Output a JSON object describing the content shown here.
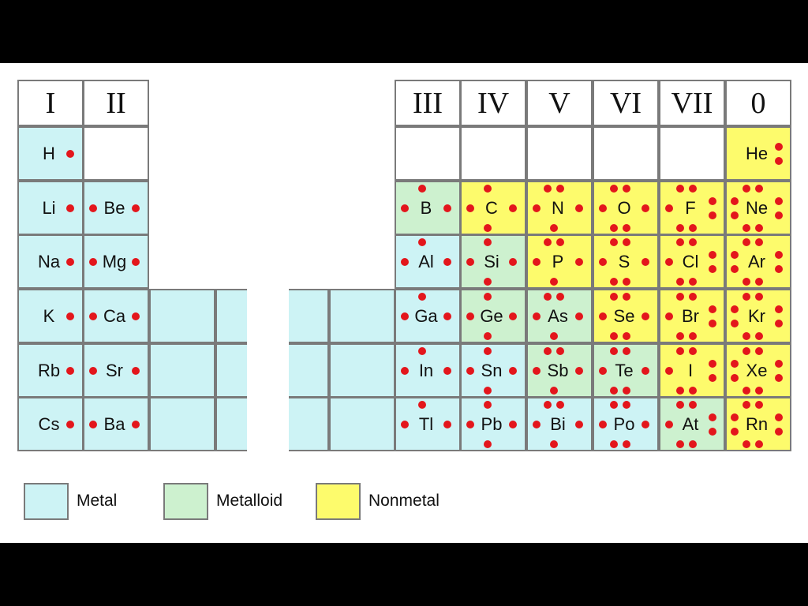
{
  "colors": {
    "metal": "#cdf3f5",
    "metalloid": "#cdf1cf",
    "nonmetal": "#fdfb6c",
    "empty": "#ffffff",
    "dot": "#e3161c"
  },
  "groups": [
    {
      "label": "I"
    },
    {
      "label": "II"
    },
    {
      "label": "III"
    },
    {
      "label": "IV"
    },
    {
      "label": "V"
    },
    {
      "label": "VI"
    },
    {
      "label": "VII"
    },
    {
      "label": "0"
    }
  ],
  "elements": [
    {
      "symbol": "H",
      "group": 0,
      "period": 0,
      "type": "metal",
      "valence": 1
    },
    {
      "symbol": "He",
      "group": 7,
      "period": 0,
      "type": "nonmetal",
      "valence": 2
    },
    {
      "symbol": "Li",
      "group": 0,
      "period": 1,
      "type": "metal",
      "valence": 1
    },
    {
      "symbol": "Be",
      "group": 1,
      "period": 1,
      "type": "metal",
      "valence": 2
    },
    {
      "symbol": "B",
      "group": 2,
      "period": 1,
      "type": "metalloid",
      "valence": 3
    },
    {
      "symbol": "C",
      "group": 3,
      "period": 1,
      "type": "nonmetal",
      "valence": 4
    },
    {
      "symbol": "N",
      "group": 4,
      "period": 1,
      "type": "nonmetal",
      "valence": 5
    },
    {
      "symbol": "O",
      "group": 5,
      "period": 1,
      "type": "nonmetal",
      "valence": 6
    },
    {
      "symbol": "F",
      "group": 6,
      "period": 1,
      "type": "nonmetal",
      "valence": 7
    },
    {
      "symbol": "Ne",
      "group": 7,
      "period": 1,
      "type": "nonmetal",
      "valence": 8
    },
    {
      "symbol": "Na",
      "group": 0,
      "period": 2,
      "type": "metal",
      "valence": 1
    },
    {
      "symbol": "Mg",
      "group": 1,
      "period": 2,
      "type": "metal",
      "valence": 2
    },
    {
      "symbol": "Al",
      "group": 2,
      "period": 2,
      "type": "metal",
      "valence": 3
    },
    {
      "symbol": "Si",
      "group": 3,
      "period": 2,
      "type": "metalloid",
      "valence": 4
    },
    {
      "symbol": "P",
      "group": 4,
      "period": 2,
      "type": "nonmetal",
      "valence": 5
    },
    {
      "symbol": "S",
      "group": 5,
      "period": 2,
      "type": "nonmetal",
      "valence": 6
    },
    {
      "symbol": "Cl",
      "group": 6,
      "period": 2,
      "type": "nonmetal",
      "valence": 7
    },
    {
      "symbol": "Ar",
      "group": 7,
      "period": 2,
      "type": "nonmetal",
      "valence": 8
    },
    {
      "symbol": "K",
      "group": 0,
      "period": 3,
      "type": "metal",
      "valence": 1
    },
    {
      "symbol": "Ca",
      "group": 1,
      "period": 3,
      "type": "metal",
      "valence": 2
    },
    {
      "symbol": "Ga",
      "group": 2,
      "period": 3,
      "type": "metal",
      "valence": 3
    },
    {
      "symbol": "Ge",
      "group": 3,
      "period": 3,
      "type": "metalloid",
      "valence": 4
    },
    {
      "symbol": "As",
      "group": 4,
      "period": 3,
      "type": "metalloid",
      "valence": 5
    },
    {
      "symbol": "Se",
      "group": 5,
      "period": 3,
      "type": "nonmetal",
      "valence": 6
    },
    {
      "symbol": "Br",
      "group": 6,
      "period": 3,
      "type": "nonmetal",
      "valence": 7
    },
    {
      "symbol": "Kr",
      "group": 7,
      "period": 3,
      "type": "nonmetal",
      "valence": 8
    },
    {
      "symbol": "Rb",
      "group": 0,
      "period": 4,
      "type": "metal",
      "valence": 1
    },
    {
      "symbol": "Sr",
      "group": 1,
      "period": 4,
      "type": "metal",
      "valence": 2
    },
    {
      "symbol": "In",
      "group": 2,
      "period": 4,
      "type": "metal",
      "valence": 3
    },
    {
      "symbol": "Sn",
      "group": 3,
      "period": 4,
      "type": "metal",
      "valence": 4
    },
    {
      "symbol": "Sb",
      "group": 4,
      "period": 4,
      "type": "metalloid",
      "valence": 5
    },
    {
      "symbol": "Te",
      "group": 5,
      "period": 4,
      "type": "metalloid",
      "valence": 6
    },
    {
      "symbol": "I",
      "group": 6,
      "period": 4,
      "type": "nonmetal",
      "valence": 7
    },
    {
      "symbol": "Xe",
      "group": 7,
      "period": 4,
      "type": "nonmetal",
      "valence": 8
    },
    {
      "symbol": "Cs",
      "group": 0,
      "period": 5,
      "type": "metal",
      "valence": 1
    },
    {
      "symbol": "Ba",
      "group": 1,
      "period": 5,
      "type": "metal",
      "valence": 2
    },
    {
      "symbol": "Tl",
      "group": 2,
      "period": 5,
      "type": "metal",
      "valence": 3
    },
    {
      "symbol": "Pb",
      "group": 3,
      "period": 5,
      "type": "metal",
      "valence": 4
    },
    {
      "symbol": "Bi",
      "group": 4,
      "period": 5,
      "type": "metal",
      "valence": 5
    },
    {
      "symbol": "Po",
      "group": 5,
      "period": 5,
      "type": "metal",
      "valence": 6
    },
    {
      "symbol": "At",
      "group": 6,
      "period": 5,
      "type": "metalloid",
      "valence": 7
    },
    {
      "symbol": "Rn",
      "group": 7,
      "period": 5,
      "type": "nonmetal",
      "valence": 8
    }
  ],
  "empty_cells": [
    {
      "group": 1,
      "period": 0
    },
    {
      "group": 2,
      "period": 0
    },
    {
      "group": 3,
      "period": 0
    },
    {
      "group": 4,
      "period": 0
    },
    {
      "group": 5,
      "period": 0
    },
    {
      "group": 6,
      "period": 0
    }
  ],
  "legend": [
    {
      "label": "Metal",
      "type": "metal"
    },
    {
      "label": "Metalloid",
      "type": "metalloid"
    },
    {
      "label": "Nonmetal",
      "type": "nonmetal"
    }
  ]
}
